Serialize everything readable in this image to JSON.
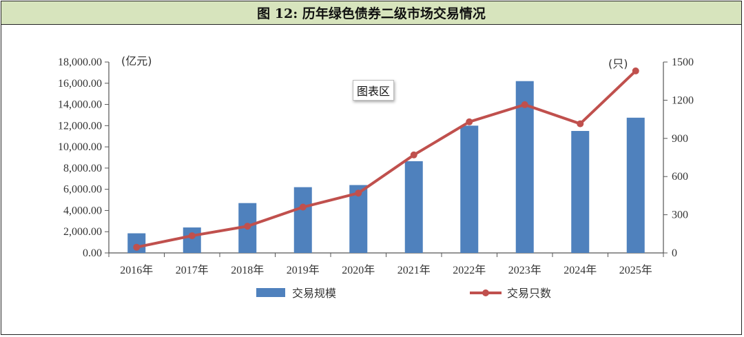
{
  "title": "图 12:  历年绿色债券二级市场交易情况",
  "plot_area_tag": "图表区",
  "colors": {
    "bar": "#4f81bd",
    "line": "#c0504d",
    "title_bg": "#d7e4bd"
  },
  "chart_data": {
    "type": "bar",
    "categories": [
      "2016年",
      "2017年",
      "2018年",
      "2019年",
      "2020年",
      "2021年",
      "2022年",
      "2023年",
      "2024年",
      "2025年"
    ],
    "series": [
      {
        "name": "交易规模",
        "type": "bar",
        "axis": "left",
        "values": [
          1850,
          2400,
          4700,
          6200,
          6400,
          8650,
          12000,
          16200,
          11500,
          12750
        ]
      },
      {
        "name": "交易只数",
        "type": "line",
        "axis": "right",
        "values": [
          45,
          135,
          210,
          360,
          470,
          770,
          1030,
          1165,
          1015,
          1430
        ]
      }
    ],
    "y_left": {
      "unit": "(亿元)",
      "min": 0,
      "max": 18000,
      "step": 2000,
      "ticks": [
        "0.00",
        "2,000.00",
        "4,000.00",
        "6,000.00",
        "8,000.00",
        "10,000.00",
        "12,000.00",
        "14,000.00",
        "16,000.00",
        "18,000.00"
      ]
    },
    "y_right": {
      "unit": "(只)",
      "min": 0,
      "max": 1500,
      "step": 300,
      "ticks": [
        "0",
        "300",
        "600",
        "900",
        "1200",
        "1500"
      ]
    },
    "legend": {
      "position": "bottom",
      "entries": [
        "交易规模",
        "交易只数"
      ]
    },
    "grid": false
  }
}
